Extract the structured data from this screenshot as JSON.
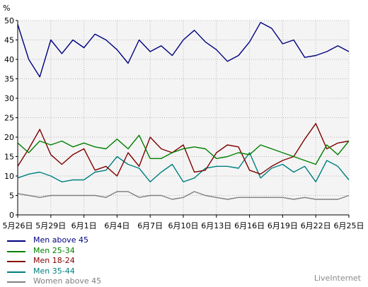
{
  "chart_data": {
    "type": "line",
    "ylabel": "%",
    "ylim": [
      0,
      50
    ],
    "yticks": [
      "0",
      "5",
      "10",
      "15",
      "20",
      "25",
      "30",
      "35",
      "40",
      "45",
      "50"
    ],
    "xticks": [
      {
        "idx": 0,
        "label": "5月26日"
      },
      {
        "idx": 3,
        "label": "5月29日"
      },
      {
        "idx": 6,
        "label": "6月1日"
      },
      {
        "idx": 9,
        "label": "6月4日"
      },
      {
        "idx": 12,
        "label": "6月7日"
      },
      {
        "idx": 15,
        "label": "6月10日"
      },
      {
        "idx": 18,
        "label": "6月13日"
      },
      {
        "idx": 21,
        "label": "6月16日"
      },
      {
        "idx": 24,
        "label": "6月19日"
      },
      {
        "idx": 27,
        "label": "6月22日"
      },
      {
        "idx": 30,
        "label": "6月25日"
      }
    ],
    "grid": true,
    "legend_position": "bottom-left",
    "series": [
      {
        "name": "Men above 45",
        "color": "#000080",
        "values": [
          49,
          40,
          35.5,
          45,
          41.5,
          45,
          43,
          46.5,
          45,
          42.5,
          39,
          45,
          42,
          43.5,
          41,
          45,
          47.5,
          44.5,
          42.5,
          39.5,
          41,
          44.5,
          49.5,
          48,
          44,
          45,
          40.5,
          41,
          42,
          43.5,
          42
        ]
      },
      {
        "name": "Men 25-34",
        "color": "#008000",
        "values": [
          18.5,
          16,
          19,
          18,
          19,
          17.5,
          18.5,
          17.5,
          17,
          19.5,
          17,
          20.5,
          14.5,
          14.5,
          16,
          17,
          17.5,
          17,
          14.5,
          15,
          16,
          15.5,
          18,
          17,
          16,
          15,
          14,
          13,
          18,
          15.5,
          19
        ]
      },
      {
        "name": "Men 18-24",
        "color": "#800000",
        "values": [
          12.5,
          17,
          22,
          15.5,
          13,
          15.5,
          17,
          11.5,
          12.5,
          10,
          16,
          12.5,
          20,
          17,
          16,
          18,
          11,
          11.5,
          16,
          18,
          17.5,
          11.5,
          10.5,
          12.5,
          14,
          15,
          19.5,
          23.5,
          17,
          18.5,
          19
        ]
      },
      {
        "name": "Men 35-44",
        "color": "#008080",
        "values": [
          9.5,
          10.5,
          11,
          10,
          8.5,
          9,
          9,
          11,
          11.5,
          15,
          13,
          12,
          8.5,
          11,
          13,
          8.5,
          9.5,
          12,
          12.5,
          12.5,
          12,
          16,
          9.5,
          12,
          13,
          11,
          12.5,
          8.5,
          14,
          12.5,
          9
        ]
      },
      {
        "name": "Women above 45",
        "color": "#808080",
        "values": [
          5.5,
          5,
          4.5,
          5,
          5,
          5,
          5,
          5,
          4.5,
          6,
          6,
          4.5,
          5,
          5,
          4,
          4.5,
          6,
          5,
          4.5,
          4,
          4.5,
          4.5,
          4.5,
          4.5,
          4.5,
          4,
          4.5,
          4,
          4,
          4,
          5
        ]
      }
    ]
  },
  "watermark": "LiveInternet"
}
